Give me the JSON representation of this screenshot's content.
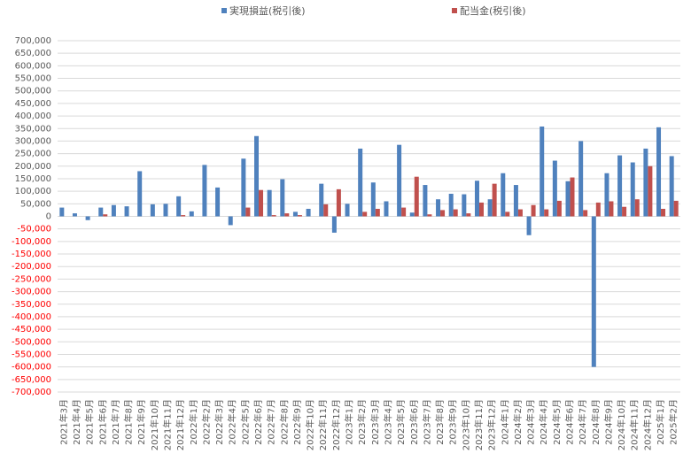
{
  "chart_data": {
    "type": "bar",
    "categories": [
      "2021年3月",
      "2021年4月",
      "2021年5月",
      "2021年6月",
      "2021年7月",
      "2021年8月",
      "2021年9月",
      "2021年10月",
      "2021年11月",
      "2021年12月",
      "2022年1月",
      "2022年2月",
      "2022年3月",
      "2022年4月",
      "2022年5月",
      "2022年6月",
      "2022年7月",
      "2022年8月",
      "2022年9月",
      "2022年10月",
      "2022年11月",
      "2022年12月",
      "2023年1月",
      "2023年2月",
      "2023年3月",
      "2023年4月",
      "2023年5月",
      "2023年6月",
      "2023年7月",
      "2023年8月",
      "2023年9月",
      "2023年10月",
      "2023年11月",
      "2023年12月",
      "2024年1月",
      "2024年2月",
      "2024年3月",
      "2024年4月",
      "2024年5月",
      "2024年6月",
      "2024年7月",
      "2024年8月",
      "2024年9月",
      "2024年10月",
      "2024年11月",
      "2024年12月",
      "2025年1月",
      "2025年2月"
    ],
    "series": [
      {
        "name": "実現損益(税引後)",
        "color": "#4f81bd",
        "values": [
          35000,
          12000,
          -15000,
          35000,
          45000,
          40000,
          180000,
          48000,
          50000,
          80000,
          20000,
          205000,
          115000,
          -35000,
          230000,
          320000,
          105000,
          148000,
          18000,
          30000,
          130000,
          -65000,
          50000,
          270000,
          135000,
          60000,
          285000,
          15000,
          125000,
          68000,
          90000,
          88000,
          142000,
          68000,
          172000,
          125000,
          -75000,
          358000,
          222000,
          140000,
          300000,
          -600000,
          172000,
          243000,
          215000,
          270000,
          355000,
          240000
        ]
      },
      {
        "name": "配当金(税引後)",
        "color": "#c0504d",
        "values": [
          0,
          0,
          0,
          8000,
          0,
          0,
          0,
          0,
          0,
          5000,
          0,
          0,
          0,
          0,
          35000,
          105000,
          5000,
          12000,
          5000,
          0,
          48000,
          108000,
          0,
          18000,
          30000,
          0,
          35000,
          158000,
          8000,
          25000,
          28000,
          12000,
          55000,
          130000,
          18000,
          28000,
          45000,
          28000,
          62000,
          155000,
          25000,
          55000,
          60000,
          38000,
          68000,
          200000,
          30000,
          62000
        ]
      }
    ],
    "ylim": [
      -700000,
      700000
    ],
    "yticks": [
      {
        "value": -700000,
        "label": "-700,000"
      },
      {
        "value": -650000,
        "label": "-650,000"
      },
      {
        "value": -600000,
        "label": "-600,000"
      },
      {
        "value": -550000,
        "label": "-550,000"
      },
      {
        "value": -500000,
        "label": "-500,000"
      },
      {
        "value": -450000,
        "label": "-450,000"
      },
      {
        "value": -400000,
        "label": "-400,000"
      },
      {
        "value": -350000,
        "label": "-350,000"
      },
      {
        "value": -300000,
        "label": "-300,000"
      },
      {
        "value": -250000,
        "label": "-250,000"
      },
      {
        "value": -200000,
        "label": "-200,000"
      },
      {
        "value": -150000,
        "label": "-150,000"
      },
      {
        "value": -100000,
        "label": "-100,000"
      },
      {
        "value": -50000,
        "label": "-50,000"
      },
      0,
      {
        "value": 50000,
        "label": "50,000"
      },
      {
        "value": 100000,
        "label": "100,000"
      },
      {
        "value": 150000,
        "label": "150,000"
      },
      {
        "value": 200000,
        "label": "200,000"
      },
      {
        "value": 250000,
        "label": "250,000"
      },
      {
        "value": 300000,
        "label": "300,000"
      },
      {
        "value": 350000,
        "label": "350,000"
      },
      {
        "value": 400000,
        "label": "400,000"
      },
      {
        "value": 450000,
        "label": "450,000"
      },
      {
        "value": 500000,
        "label": "500,000"
      },
      {
        "value": 550000,
        "label": "550,000"
      },
      {
        "value": 600000,
        "label": "600,000"
      },
      {
        "value": 650000,
        "label": "650,000"
      },
      {
        "value": 700000,
        "label": "700,000"
      }
    ],
    "grid": true,
    "legend": "top",
    "negative_tick_color": "#ff0000"
  }
}
